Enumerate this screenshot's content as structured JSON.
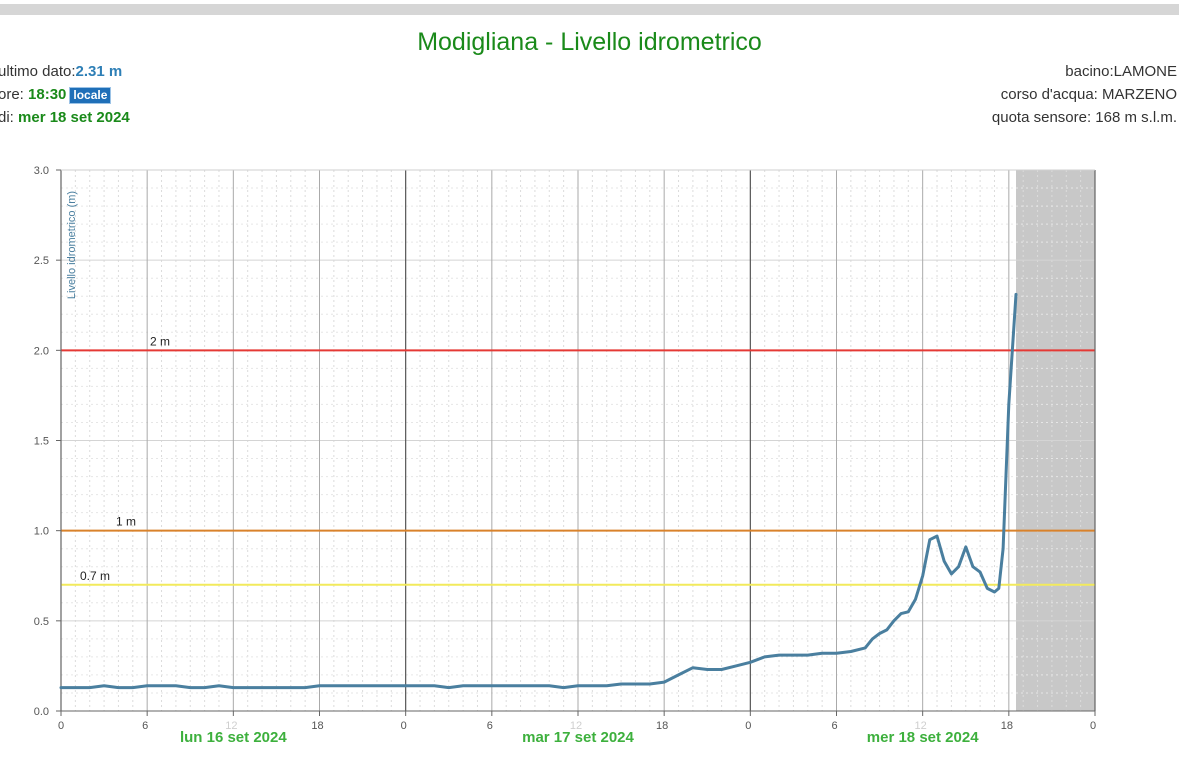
{
  "title": "Modigliana - Livello idrometrico",
  "info": {
    "last_label": "ultimo dato:",
    "last_value": "2.31 m",
    "time_label": "ore: ",
    "time_value": "18:30",
    "time_badge": "locale",
    "date_label": "di: ",
    "date_value": "mer 18 set 2024",
    "basin": "bacino:LAMONE",
    "river": "corso d'acqua: MARZENO",
    "quota": "quota sensore: 168 m s.l.m."
  },
  "colors": {
    "series": "#4a7f9f",
    "threshold_red": "#e53935",
    "threshold_orange": "#d9822b",
    "threshold_yellow": "#f2ea5c",
    "date_green": "#3db03d",
    "future_shade": "#c8c8c8"
  },
  "chart_data": {
    "type": "line",
    "ylabel": "Livello idrometrico (m)",
    "ylim": [
      0,
      3
    ],
    "yticks": [
      "0.0",
      "0.5",
      "1.0",
      "1.5",
      "2.0",
      "2.5",
      "3.0"
    ],
    "xlim_hours": [
      0,
      72
    ],
    "x_tick_labels": [
      "0",
      "6",
      "12",
      "18",
      "0",
      "6",
      "12",
      "18",
      "0",
      "6",
      "12",
      "18",
      "0"
    ],
    "date_labels": [
      {
        "hour": 12,
        "label": "lun 16 set 2024"
      },
      {
        "hour": 36,
        "label": "mar 17 set 2024"
      },
      {
        "hour": 60,
        "label": "mer 18 set 2024"
      }
    ],
    "thresholds": [
      {
        "value": 2.0,
        "label": "2 m",
        "color": "red"
      },
      {
        "value": 1.0,
        "label": "1 m",
        "color": "orange"
      },
      {
        "value": 0.7,
        "label": "0.7 m",
        "color": "yellow"
      }
    ],
    "future_from_hour": 66.5,
    "x": [
      0,
      1,
      2,
      3,
      4,
      5,
      6,
      7,
      8,
      9,
      10,
      11,
      12,
      13,
      14,
      15,
      16,
      17,
      18,
      19,
      20,
      21,
      22,
      23,
      24,
      25,
      26,
      27,
      28,
      29,
      30,
      31,
      32,
      33,
      34,
      35,
      36,
      37,
      38,
      39,
      40,
      41,
      42,
      43,
      44,
      45,
      46,
      47,
      48,
      49,
      50,
      51,
      52,
      53,
      54,
      55,
      56,
      56.5,
      57,
      57.5,
      58,
      58.5,
      59,
      59.5,
      60,
      60.5,
      61,
      61.5,
      62,
      62.5,
      63,
      63.5,
      64,
      64.5,
      65,
      65.3,
      65.6,
      66,
      66.5
    ],
    "y": [
      0.13,
      0.13,
      0.13,
      0.14,
      0.13,
      0.13,
      0.14,
      0.14,
      0.14,
      0.13,
      0.13,
      0.14,
      0.13,
      0.13,
      0.13,
      0.13,
      0.13,
      0.13,
      0.14,
      0.14,
      0.14,
      0.14,
      0.14,
      0.14,
      0.14,
      0.14,
      0.14,
      0.13,
      0.14,
      0.14,
      0.14,
      0.14,
      0.14,
      0.14,
      0.14,
      0.13,
      0.14,
      0.14,
      0.14,
      0.15,
      0.15,
      0.15,
      0.16,
      0.2,
      0.24,
      0.23,
      0.23,
      0.25,
      0.27,
      0.3,
      0.31,
      0.31,
      0.31,
      0.32,
      0.32,
      0.33,
      0.35,
      0.4,
      0.43,
      0.45,
      0.5,
      0.54,
      0.55,
      0.62,
      0.75,
      0.95,
      0.97,
      0.83,
      0.76,
      0.8,
      0.91,
      0.8,
      0.77,
      0.68,
      0.66,
      0.68,
      0.9,
      1.7,
      2.31
    ]
  }
}
